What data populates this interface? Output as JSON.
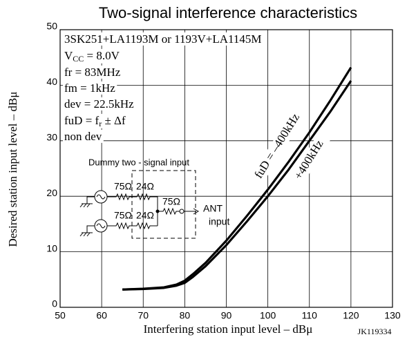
{
  "chart_data": {
    "type": "line",
    "title": "Two-signal interference characteristics",
    "x_label": "Interfering station input level – dBμ",
    "y_label": "Desired station input level – dBμ",
    "figure_code": "JK119334",
    "x": [
      65,
      70,
      75,
      78,
      80,
      82,
      85,
      90,
      95,
      100,
      105,
      110,
      115,
      120
    ],
    "series": [
      {
        "name": "fuD = –400kHz",
        "color": "#000000",
        "values": [
          3.2,
          3.35,
          3.6,
          4.1,
          4.8,
          6.0,
          8.0,
          12.0,
          16.5,
          21.2,
          26.2,
          31.5,
          37.2,
          43.2
        ]
      },
      {
        "name": "+400kHz",
        "color": "#000000",
        "values": [
          3.2,
          3.3,
          3.5,
          3.9,
          4.4,
          5.5,
          7.4,
          11.2,
          15.5,
          20.0,
          24.8,
          30.0,
          35.2,
          40.8
        ]
      }
    ],
    "xlim": [
      50,
      130
    ],
    "xticks": [
      50,
      60,
      70,
      80,
      90,
      100,
      110,
      120,
      130
    ],
    "ylim": [
      0,
      50
    ],
    "yticks": [
      0,
      10,
      20,
      30,
      40,
      50
    ],
    "grid": true,
    "conditions": [
      {
        "text": "3SK251+LA1193M or 1193V+LA1145M"
      },
      {
        "text": "V",
        "sub": "CC",
        "rest": " = 8.0V"
      },
      {
        "text": "fr = 83MHz"
      },
      {
        "text": "fm = 1kHz"
      },
      {
        "text": "dev = 22.5kHz"
      },
      {
        "text": "fuD = f",
        "sub": "r",
        "rest": " ± Δf"
      },
      {
        "text": "non dev"
      }
    ],
    "circuit": {
      "title": "Dummy two - signal input",
      "labels": [
        "75Ω",
        "24Ω",
        "75Ω",
        "75Ω",
        "24Ω",
        "ANT",
        "input"
      ]
    }
  }
}
